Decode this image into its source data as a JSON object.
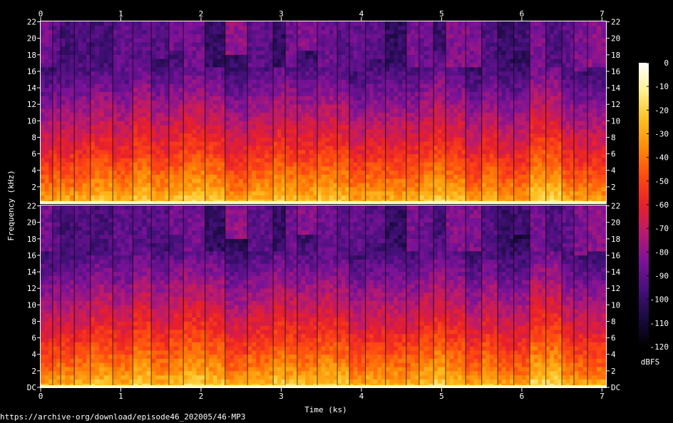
{
  "chart_data": {
    "type": "heatmap",
    "title": "",
    "xlabel": "Time (ks)",
    "ylabel": "Frequency (kHz)",
    "colorbar_label": "dBFS",
    "x_ticks": [
      "0",
      "1",
      "2",
      "3",
      "4",
      "5",
      "6",
      "7"
    ],
    "y_ticks": [
      "DC",
      "2",
      "4",
      "6",
      "8",
      "10",
      "12",
      "14",
      "16",
      "18",
      "20",
      "22"
    ],
    "colorbar_ticks": [
      "0",
      "-10",
      "-20",
      "-30",
      "-40",
      "-50",
      "-60",
      "-70",
      "-80",
      "-90",
      "-100",
      "-110",
      "-120"
    ],
    "xlim": [
      0,
      7.05
    ],
    "ylim": [
      0,
      22.05
    ],
    "colorbar_range": [
      -120,
      0
    ],
    "channels": [
      "top",
      "bottom"
    ],
    "colormap": [
      "#000000",
      "#1a0a40",
      "#45107a",
      "#7a1298",
      "#b81a6f",
      "#e8202a",
      "#ff4a10",
      "#ff8a08",
      "#ffc020",
      "#fff090",
      "#ffffff"
    ],
    "segment_boundaries_ks": [
      0,
      0.15,
      0.25,
      0.42,
      0.62,
      0.9,
      1.15,
      1.38,
      1.6,
      1.78,
      2.05,
      2.3,
      2.58,
      2.9,
      3.05,
      3.2,
      3.45,
      3.7,
      3.85,
      4.05,
      4.3,
      4.56,
      4.72,
      4.9,
      5.05,
      5.3,
      5.5,
      5.7,
      5.9,
      6.1,
      6.3,
      6.5,
      6.65,
      6.82,
      7.05
    ]
  },
  "source_url": "https://archive·org/download/episode46_202005/46·MP3"
}
